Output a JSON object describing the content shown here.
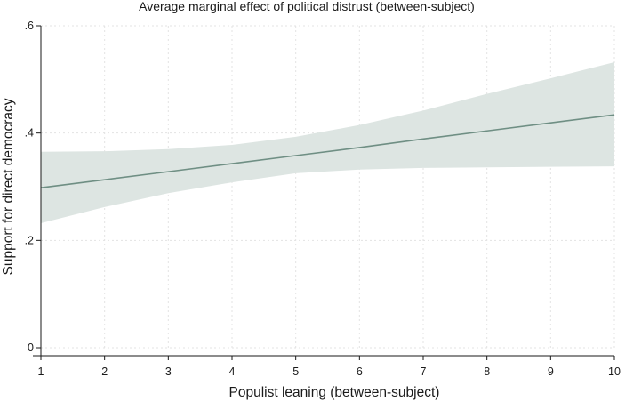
{
  "chart_data": {
    "type": "line",
    "title": "Average marginal effect of political distrust (between-subject)",
    "xlabel": "Populist leaning (between-subject)",
    "ylabel": "Support for direct democracy",
    "xlim": [
      1,
      10
    ],
    "ylim": [
      0,
      0.6
    ],
    "x_ticks": [
      1,
      2,
      3,
      4,
      5,
      6,
      7,
      8,
      9,
      10
    ],
    "x_tick_labels": [
      "1",
      "2",
      "3",
      "4",
      "5",
      "6",
      "7",
      "8",
      "9",
      "10"
    ],
    "y_ticks": [
      0,
      0.2,
      0.4,
      0.6
    ],
    "y_tick_labels": [
      "0",
      ".2",
      ".4",
      ".6"
    ],
    "grid": true,
    "x": [
      1,
      2,
      3,
      4,
      5,
      6,
      7,
      8,
      9,
      10
    ],
    "series": [
      {
        "values": [
          0.298,
          0.313,
          0.328,
          0.343,
          0.358,
          0.373,
          0.389,
          0.404,
          0.419,
          0.434
        ],
        "ci_lower": [
          0.232,
          0.262,
          0.288,
          0.308,
          0.325,
          0.332,
          0.335,
          0.336,
          0.337,
          0.338
        ],
        "ci_upper": [
          0.365,
          0.366,
          0.37,
          0.378,
          0.393,
          0.415,
          0.442,
          0.473,
          0.502,
          0.532
        ]
      }
    ],
    "colors": {
      "line": "#6f8f84",
      "band": "#dde5e2",
      "grid": "#e3e3e3",
      "axis": "#1a1a1a",
      "background": "#ffffff"
    }
  }
}
